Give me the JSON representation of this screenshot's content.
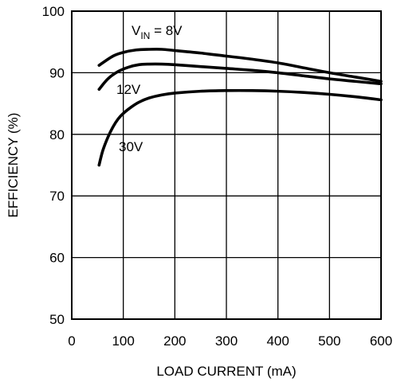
{
  "chart_data": {
    "type": "line",
    "title": "",
    "xlabel": "LOAD CURRENT (mA)",
    "ylabel": "EFFICIENCY (%)",
    "xlim": [
      0,
      600
    ],
    "ylim": [
      50,
      100
    ],
    "x_ticks": [
      "0",
      "100",
      "200",
      "300",
      "400",
      "500",
      "600"
    ],
    "y_ticks": [
      "50",
      "60",
      "70",
      "80",
      "90",
      "100"
    ],
    "grid": true,
    "legend": "none",
    "series": [
      {
        "name": "VIN = 8V",
        "label_main": "V",
        "label_sub": "IN",
        "label_rest": " = 8V",
        "x": [
          53,
          80,
          100,
          125,
          150,
          175,
          200,
          250,
          300,
          350,
          400,
          450,
          500,
          550,
          600
        ],
        "values": [
          91.2,
          92.7,
          93.3,
          93.7,
          93.8,
          93.8,
          93.6,
          93.2,
          92.7,
          92.2,
          91.6,
          90.8,
          90.0,
          89.3,
          88.6
        ]
      },
      {
        "name": "12V",
        "x": [
          53,
          70,
          90,
          110,
          130,
          150,
          175,
          200,
          250,
          300,
          350,
          400,
          450,
          500,
          550,
          600
        ],
        "values": [
          87.3,
          89.0,
          90.2,
          90.9,
          91.3,
          91.4,
          91.4,
          91.3,
          91.0,
          90.7,
          90.4,
          90.0,
          89.5,
          89.0,
          88.6,
          88.2
        ]
      },
      {
        "name": "30V",
        "x": [
          53,
          60,
          70,
          80,
          90,
          100,
          115,
          130,
          150,
          175,
          200,
          250,
          300,
          350,
          400,
          450,
          500,
          550,
          600
        ],
        "values": [
          75.0,
          77.3,
          79.5,
          81.2,
          82.5,
          83.4,
          84.4,
          85.2,
          85.9,
          86.4,
          86.7,
          87.0,
          87.1,
          87.1,
          87.0,
          86.8,
          86.5,
          86.1,
          85.6
        ]
      }
    ]
  },
  "colors": {
    "line": "#000000",
    "grid": "#000000",
    "background": "#ffffff"
  }
}
